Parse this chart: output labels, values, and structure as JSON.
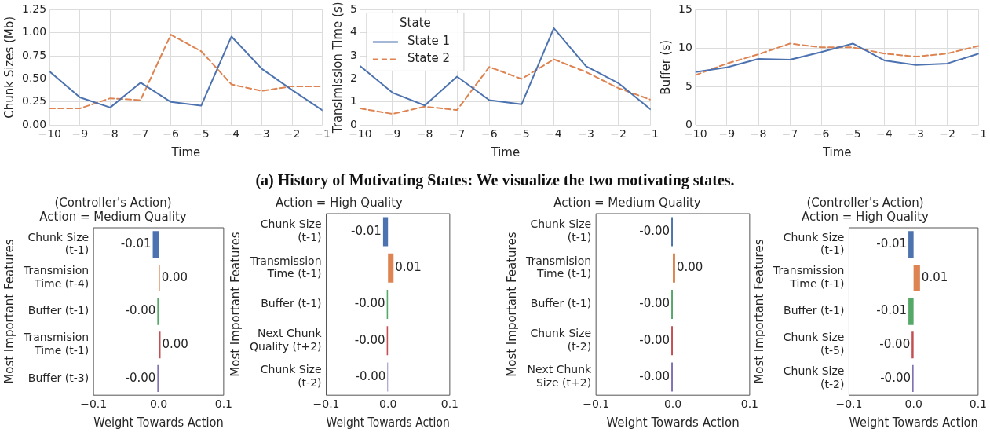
{
  "chart_data": [
    {
      "type": "line",
      "x": [
        -10,
        -9,
        -8,
        -7,
        -6,
        -5,
        -4,
        -3,
        -2,
        -1
      ],
      "xlabel": "Time",
      "ylabel": "Chunk Sizes (Mb)",
      "annotations": [
        "(a) History of Motivating States: We visualize the two motivating states."
      ],
      "xlim": [
        -10,
        -1
      ],
      "xticks": [
        {
          "value": -10,
          "label": "−10"
        },
        {
          "value": -9,
          "label": "−9"
        },
        {
          "value": -8,
          "label": "−8"
        },
        {
          "value": -7,
          "label": "−7"
        },
        {
          "value": -6,
          "label": "−6"
        },
        {
          "value": -5,
          "label": "−5"
        },
        {
          "value": -4,
          "label": "−4"
        },
        {
          "value": -3,
          "label": "−3"
        },
        {
          "value": -2,
          "label": "−2"
        },
        {
          "value": -1,
          "label": "−1"
        }
      ],
      "ylim": [
        0,
        1.25
      ],
      "yticks": [
        {
          "value": 0,
          "label": "0.00"
        },
        {
          "value": 0.25,
          "label": "0.25"
        },
        {
          "value": 0.5,
          "label": "0.50"
        },
        {
          "value": 0.75,
          "label": "0.75"
        },
        {
          "value": 1,
          "label": "1.00"
        },
        {
          "value": 1.25,
          "label": "1.25"
        }
      ],
      "grid": true,
      "marker": "none",
      "series": [
        {
          "color": "#4c72b0",
          "line_style": "solid",
          "values": [
            0.58,
            0.3,
            0.19,
            0.46,
            0.25,
            0.21,
            0.96,
            0.61,
            0.38,
            0.16
          ]
        },
        {
          "color": "#dd8452",
          "line_style": "dashed",
          "values": [
            0.18,
            0.18,
            0.29,
            0.27,
            0.98,
            0.8,
            0.44,
            0.37,
            0.42,
            0.42
          ]
        }
      ]
    },
    {
      "type": "line",
      "x": [
        -10,
        -9,
        -8,
        -7,
        -6,
        -5,
        -4,
        -3,
        -2,
        -1
      ],
      "xlabel": "Time",
      "ylabel": "Transimission Time (s)",
      "legend": "top left",
      "legend_title": "State",
      "xlim": [
        -10,
        -1
      ],
      "xticks": [
        {
          "value": -10,
          "label": "−10"
        },
        {
          "value": -9,
          "label": "−9"
        },
        {
          "value": -8,
          "label": "−8"
        },
        {
          "value": -7,
          "label": "−7"
        },
        {
          "value": -6,
          "label": "−6"
        },
        {
          "value": -5,
          "label": "−5"
        },
        {
          "value": -4,
          "label": "−4"
        },
        {
          "value": -3,
          "label": "−3"
        },
        {
          "value": -2,
          "label": "−2"
        },
        {
          "value": -1,
          "label": "−1"
        }
      ],
      "ylim": [
        0,
        5
      ],
      "yticks": [
        0,
        1,
        2,
        3,
        4,
        5
      ],
      "grid": true,
      "marker": "none",
      "series": [
        {
          "name": "State 1",
          "color": "#4c72b0",
          "line_style": "solid",
          "values": [
            2.55,
            1.4,
            0.85,
            2.1,
            1.08,
            0.9,
            4.2,
            2.55,
            1.82,
            0.68
          ]
        },
        {
          "name": "State 2",
          "color": "#dd8452",
          "line_style": "dashed",
          "values": [
            0.72,
            0.48,
            0.8,
            0.65,
            2.52,
            2.0,
            2.85,
            2.3,
            1.6,
            1.1
          ]
        }
      ]
    },
    {
      "type": "line",
      "x": [
        -10,
        -9,
        -8,
        -7,
        -6,
        -5,
        -4,
        -3,
        -2,
        -1
      ],
      "xlabel": "Time",
      "ylabel": "Buffer (s)",
      "xlim": [
        -10,
        -1
      ],
      "xticks": [
        {
          "value": -10,
          "label": "−10"
        },
        {
          "value": -9,
          "label": "−9"
        },
        {
          "value": -8,
          "label": "−8"
        },
        {
          "value": -7,
          "label": "−7"
        },
        {
          "value": -6,
          "label": "−6"
        },
        {
          "value": -5,
          "label": "−5"
        },
        {
          "value": -4,
          "label": "−4"
        },
        {
          "value": -3,
          "label": "−3"
        },
        {
          "value": -2,
          "label": "−2"
        },
        {
          "value": -1,
          "label": "−1"
        }
      ],
      "ylim": [
        0,
        15
      ],
      "yticks": [
        0,
        5,
        10,
        15
      ],
      "grid": true,
      "marker": "none",
      "series": [
        {
          "color": "#4c72b0",
          "line_style": "solid",
          "values": [
            6.9,
            7.5,
            8.6,
            8.5,
            9.5,
            10.6,
            8.4,
            7.8,
            8.0,
            9.3
          ]
        },
        {
          "color": "#dd8452",
          "line_style": "dashed",
          "values": [
            6.5,
            8.0,
            9.2,
            10.6,
            10.1,
            10.1,
            9.3,
            8.9,
            9.3,
            10.3
          ]
        }
      ]
    },
    {
      "type": "bar",
      "orientation": "horizontal",
      "title": "(Controller's Action)\nAction = Medium Quality",
      "xlabel": "Weight Towards Action",
      "ylabel": "Most Important Features",
      "categories": [
        "Chunk Size (t-1)",
        "Transmision Time (t-4)",
        "Buffer (t-1)",
        "Transmision Time (t-1)",
        "Buffer (t-3)"
      ],
      "values": [
        -0.009,
        0.002,
        -0.002,
        0.003,
        -0.002
      ],
      "value_labels": [
        "-0.01",
        "0.00",
        "-0.00",
        "0.00",
        "-0.00"
      ],
      "colors": [
        "#4c72b0",
        "#dd8452",
        "#55a868",
        "#c44e52",
        "#8172b3"
      ],
      "xlim": [
        -0.1,
        0.1
      ],
      "xticks": [
        {
          "value": -0.1,
          "label": "−0.1"
        },
        {
          "value": 0,
          "label": "0.0"
        },
        {
          "value": 0.1,
          "label": "0.1"
        }
      ],
      "grid": false
    },
    {
      "type": "bar",
      "orientation": "horizontal",
      "title": "Action = High Quality",
      "xlabel": "Weight Towards Action",
      "ylabel": "Most Important Features",
      "categories": [
        "Chunk Size (t-1)",
        "Transmission Time (t-1)",
        "Buffer (t-1)",
        "Next Chunk Quality (t+2)",
        "Chunk Size (t-2)"
      ],
      "values": [
        -0.008,
        0.009,
        -0.002,
        -0.002,
        -0.001
      ],
      "value_labels": [
        "-0.01",
        "0.01",
        "-0.00",
        "-0.00",
        "-0.00"
      ],
      "colors": [
        "#4c72b0",
        "#dd8452",
        "#55a868",
        "#c44e52",
        "#8172b3"
      ],
      "xlim": [
        -0.1,
        0.1
      ],
      "xticks": [
        {
          "value": -0.1,
          "label": "−0.1"
        },
        {
          "value": 0,
          "label": "0.0"
        },
        {
          "value": 0.1,
          "label": "0.1"
        }
      ],
      "grid": false
    },
    {
      "type": "bar",
      "orientation": "horizontal",
      "title": "Action = Medium Quality",
      "xlabel": "Weight Towards Action",
      "ylabel": "Most Important Features",
      "categories": [
        "Chunk Size (t-1)",
        "Transmision Time (t-1)",
        "Buffer (t-1)",
        "Chunk Size (t-2)",
        "Next Chunk Size (t+2)"
      ],
      "values": [
        -0.002,
        0.003,
        -0.002,
        -0.002,
        -0.002
      ],
      "value_labels": [
        "-0.00",
        "0.00",
        "-0.00",
        "-0.00",
        "-0.00"
      ],
      "colors": [
        "#4c72b0",
        "#dd8452",
        "#55a868",
        "#c44e52",
        "#8172b3"
      ],
      "xlim": [
        -0.1,
        0.1
      ],
      "xticks": [
        {
          "value": -0.1,
          "label": "−0.1"
        },
        {
          "value": 0,
          "label": "0.0"
        },
        {
          "value": 0.1,
          "label": "0.1"
        }
      ],
      "grid": false
    },
    {
      "type": "bar",
      "orientation": "horizontal",
      "title": "(Controller's Action)\nAction = High Quality",
      "xlabel": "Weight Towards Action",
      "ylabel": "Most Important Features",
      "categories": [
        "Chunk Size (t-1)",
        "Transmission Time (t-1)",
        "Buffer (t-1)",
        "Chunk Size (t-5)",
        "Chunk Size (t-2)"
      ],
      "values": [
        -0.008,
        0.01,
        -0.008,
        -0.003,
        -0.002
      ],
      "value_labels": [
        "-0.01",
        "0.01",
        "-0.01",
        "-0.00",
        "-0.00"
      ],
      "colors": [
        "#4c72b0",
        "#dd8452",
        "#55a868",
        "#c44e52",
        "#8172b3"
      ],
      "xlim": [
        -0.1,
        0.1
      ],
      "xticks": [
        {
          "value": -0.1,
          "label": "−0.1"
        },
        {
          "value": 0,
          "label": "0.0"
        },
        {
          "value": 0.1,
          "label": "0.1"
        }
      ],
      "grid": false
    }
  ]
}
